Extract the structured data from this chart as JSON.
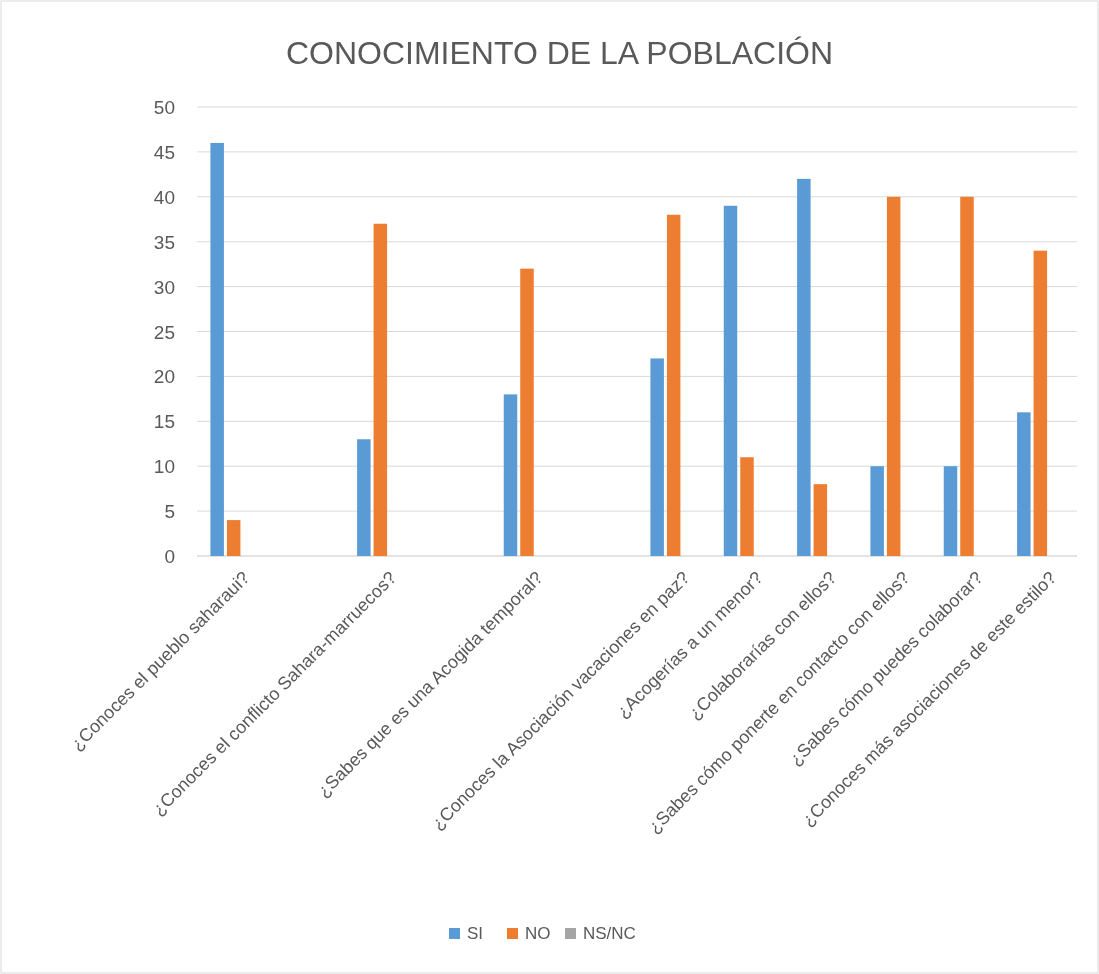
{
  "chart_data": {
    "type": "bar",
    "title": "CONOCIMIENTO DE LA POBLACIÓN",
    "categories": [
      "¿Conoces el pueblo saharaui?",
      null,
      "¿Conoces el conflicto Sahara-marruecos?",
      null,
      "¿Sabes que es una Acogida temporal?",
      null,
      "¿Conoces la Asociación vacaciones en paz?",
      "¿Acogerías a un menor?",
      "¿Colaborarías con ellos?",
      "¿Sabes cómo ponerte en contacto con ellos?",
      "¿Sabes cómo puedes colaborar?",
      "¿Conoces más asociaciones de este estilo?"
    ],
    "series": [
      {
        "name": "SI",
        "color": "#5b9bd5",
        "values": [
          46,
          null,
          13,
          null,
          18,
          null,
          22,
          39,
          42,
          10,
          10,
          16
        ]
      },
      {
        "name": "NO",
        "color": "#ed7d31",
        "values": [
          4,
          null,
          37,
          null,
          32,
          null,
          38,
          11,
          8,
          40,
          40,
          34
        ]
      },
      {
        "name": "NS/NC",
        "color": "#a5a5a5",
        "values": [
          0,
          null,
          0,
          null,
          0,
          null,
          0,
          0,
          0,
          0,
          0,
          0
        ]
      }
    ],
    "ylim": [
      0,
      50
    ],
    "yticks": [
      0,
      5,
      10,
      15,
      20,
      25,
      30,
      35,
      40,
      45,
      50
    ],
    "grid": "y",
    "legend": "bottom"
  }
}
